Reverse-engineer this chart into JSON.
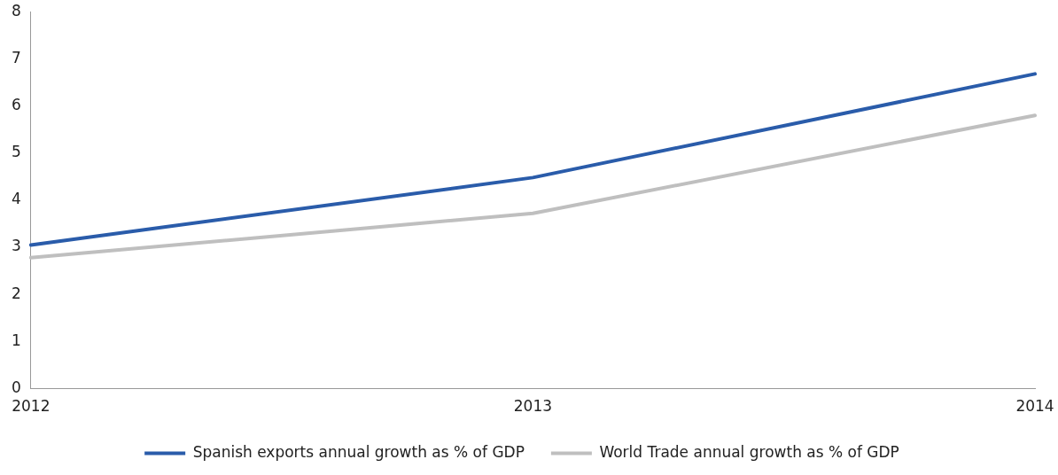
{
  "chart_data": {
    "type": "line",
    "categories": [
      "2012",
      "2013",
      "2014"
    ],
    "series": [
      {
        "name": "Spanish exports annual growth as % of GDP",
        "color": "#2a5caa",
        "values": [
          3.05,
          4.48,
          6.68
        ]
      },
      {
        "name": "World Trade annual growth as % of GDP",
        "color": "#bfbfbf",
        "values": [
          2.78,
          3.72,
          5.8
        ]
      }
    ],
    "ylim": [
      0,
      8
    ],
    "yticks": [
      0,
      1,
      2,
      3,
      4,
      5,
      6,
      7,
      8
    ],
    "grid": false,
    "legend": "bottom",
    "marker": "none",
    "line_style": "solid"
  }
}
